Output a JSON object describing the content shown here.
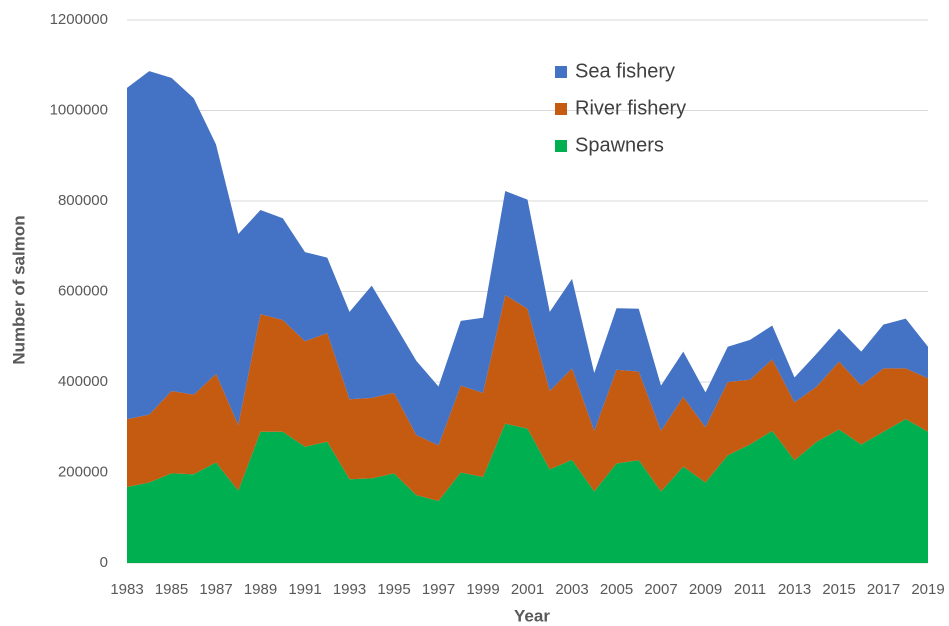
{
  "chart_data": {
    "type": "stacked-area",
    "x_label": "Year",
    "y_label": "Number of salmon",
    "x": [
      1983,
      1984,
      1985,
      1986,
      1987,
      1988,
      1989,
      1990,
      1991,
      1992,
      1993,
      1994,
      1995,
      1996,
      1997,
      1998,
      1999,
      2000,
      2001,
      2002,
      2003,
      2004,
      2005,
      2006,
      2007,
      2008,
      2009,
      2010,
      2011,
      2012,
      2013,
      2014,
      2015,
      2016,
      2017,
      2018,
      2019
    ],
    "series": [
      {
        "name": "Sea fishery",
        "color": "#4472c4",
        "values": [
          732000,
          759000,
          692000,
          655000,
          507000,
          422000,
          230000,
          225000,
          197000,
          167000,
          193000,
          248000,
          154000,
          164000,
          130000,
          143000,
          166000,
          230000,
          241000,
          175000,
          198000,
          128000,
          136000,
          139000,
          100000,
          100000,
          77000,
          78000,
          88000,
          75000,
          55000,
          73000,
          73000,
          75000,
          97000,
          110000,
          70000
        ]
      },
      {
        "name": "River fishery",
        "color": "#c55a11",
        "values": [
          150000,
          150000,
          182000,
          176000,
          196000,
          145000,
          260000,
          247000,
          233000,
          240000,
          177000,
          178000,
          178000,
          133000,
          123000,
          192000,
          186000,
          284000,
          265000,
          173000,
          202000,
          134000,
          207000,
          196000,
          134000,
          154000,
          122000,
          162000,
          143000,
          158000,
          128000,
          122000,
          150000,
          130000,
          140000,
          112000,
          118000
        ]
      },
      {
        "name": "Spawners",
        "color": "#00b050",
        "values": [
          168000,
          178000,
          198000,
          196000,
          222000,
          160000,
          290000,
          290000,
          257000,
          268000,
          185000,
          187000,
          198000,
          150000,
          137000,
          200000,
          190000,
          308000,
          297000,
          207000,
          228000,
          158000,
          220000,
          227000,
          158000,
          213000,
          178000,
          238000,
          262000,
          292000,
          227000,
          268000,
          295000,
          262000,
          290000,
          318000,
          290000
        ]
      }
    ],
    "xlim": [
      1983,
      2019
    ],
    "xticks": [
      1983,
      1985,
      1987,
      1989,
      1991,
      1993,
      1995,
      1997,
      1999,
      2001,
      2003,
      2005,
      2007,
      2009,
      2011,
      2013,
      2015,
      2017,
      2019
    ],
    "ylim": [
      0,
      1200000
    ],
    "yticks": [
      0,
      200000,
      400000,
      600000,
      800000,
      1000000,
      1200000
    ],
    "grid": true,
    "legend": "top"
  }
}
